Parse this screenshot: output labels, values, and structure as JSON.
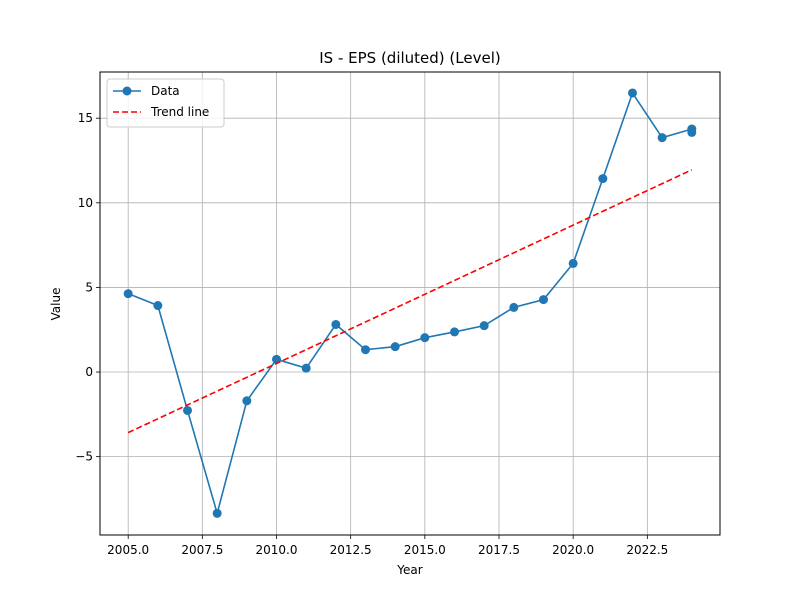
{
  "chart_data": {
    "type": "line",
    "title": "IS - EPS (diluted) (Level)",
    "xlabel": "Year",
    "ylabel": "Value",
    "xlim": [
      2004.05,
      2024.95
    ],
    "ylim": [
      -9.63,
      17.73
    ],
    "grid": true,
    "legend_position": "top-left",
    "x_ticks": [
      2005.0,
      2007.5,
      2010.0,
      2012.5,
      2015.0,
      2017.5,
      2020.0,
      2022.5
    ],
    "x_tick_labels": [
      "2005.0",
      "2007.5",
      "2010.0",
      "2012.5",
      "2015.0",
      "2017.5",
      "2020.0",
      "2022.5"
    ],
    "y_ticks": [
      -5,
      0,
      5,
      10,
      15
    ],
    "y_tick_labels": [
      "−5",
      "0",
      "5",
      "10",
      "15"
    ],
    "series": [
      {
        "name": "Data",
        "style": "line-marker",
        "color": "#1f77b4",
        "x": [
          2005,
          2006,
          2007,
          2008,
          2009,
          2010,
          2011,
          2012,
          2013,
          2014,
          2015,
          2016,
          2017,
          2018,
          2019,
          2020,
          2021,
          2022,
          2023,
          2024,
          2024
        ],
        "y": [
          4.63,
          3.93,
          -2.27,
          -8.35,
          -1.7,
          0.75,
          0.23,
          2.81,
          1.32,
          1.5,
          2.03,
          2.37,
          2.74,
          3.82,
          4.28,
          6.42,
          11.43,
          16.49,
          13.85,
          14.36,
          14.16
        ]
      },
      {
        "name": "Trend line",
        "style": "dashed",
        "color": "#ff0000",
        "x": [
          2005,
          2024
        ],
        "y": [
          -3.58,
          11.95
        ]
      }
    ]
  }
}
